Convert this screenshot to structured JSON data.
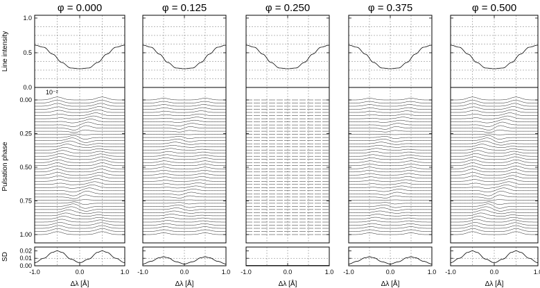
{
  "panel_titles": [
    "φ = 0.000",
    "φ = 0.125",
    "φ = 0.250",
    "φ = 0.375",
    "φ = 0.500"
  ],
  "ylabels": {
    "top": "Line intensity",
    "middle": "Pulsation phase",
    "bottom": "SD"
  },
  "xlabel": "Δλ [Å]",
  "middle_scale_label": "10⁻²",
  "colors": {
    "ink": "#000000",
    "background": "#ffffff"
  },
  "chart_data": [
    {
      "type": "line",
      "role": "line intensity profile",
      "panels": 5,
      "xlim": [
        -1.0,
        1.0
      ],
      "ylim": [
        0.0,
        1.0
      ],
      "xticks": [
        "-1.0",
        "0.0",
        "1.0"
      ],
      "yticks": [
        "0.0",
        "0.5",
        "1.0"
      ],
      "grid": true,
      "series": [
        {
          "x": [
            -1.0,
            -0.8,
            -0.6,
            -0.4,
            -0.2,
            0.0,
            0.2,
            0.4,
            0.6,
            0.8,
            1.0
          ],
          "y": [
            0.61,
            0.58,
            0.48,
            0.36,
            0.28,
            0.27,
            0.28,
            0.36,
            0.48,
            0.58,
            0.61
          ]
        }
      ]
    },
    {
      "type": "line",
      "role": "residual line profiles vs pulsation phase",
      "panels": 5,
      "xlim": [
        -1.0,
        1.0
      ],
      "ylim": [
        1.0,
        0.0
      ],
      "yticks": [
        "0.00",
        "0.25",
        "0.50",
        "0.75",
        "1.00"
      ],
      "n_phases": 44,
      "feature_x": 0.5,
      "feature_amplitude": [
        1.0,
        0.6,
        0.0,
        0.6,
        1.0
      ],
      "grid": true
    },
    {
      "type": "line",
      "role": "standard deviation",
      "panels": 5,
      "xlim": [
        -1.0,
        1.0
      ],
      "ylim": [
        0.0,
        0.025
      ],
      "yticks": [
        "0.00",
        "0.01",
        "0.02"
      ],
      "grid": true,
      "series": [
        {
          "x": [
            -1.0,
            -0.8,
            -0.6,
            -0.5,
            -0.4,
            -0.2,
            0.0,
            0.2,
            0.4,
            0.5,
            0.6,
            0.8,
            1.0
          ],
          "y_scale": [
            1.0,
            0.6,
            0.0
          ],
          "y": [
            0.004,
            0.01,
            0.018,
            0.02,
            0.018,
            0.009,
            0.004,
            0.009,
            0.018,
            0.02,
            0.018,
            0.01,
            0.004
          ]
        }
      ]
    }
  ],
  "sd_amplitude_per_panel": [
    1.0,
    0.6,
    0.0,
    0.6,
    1.0
  ]
}
